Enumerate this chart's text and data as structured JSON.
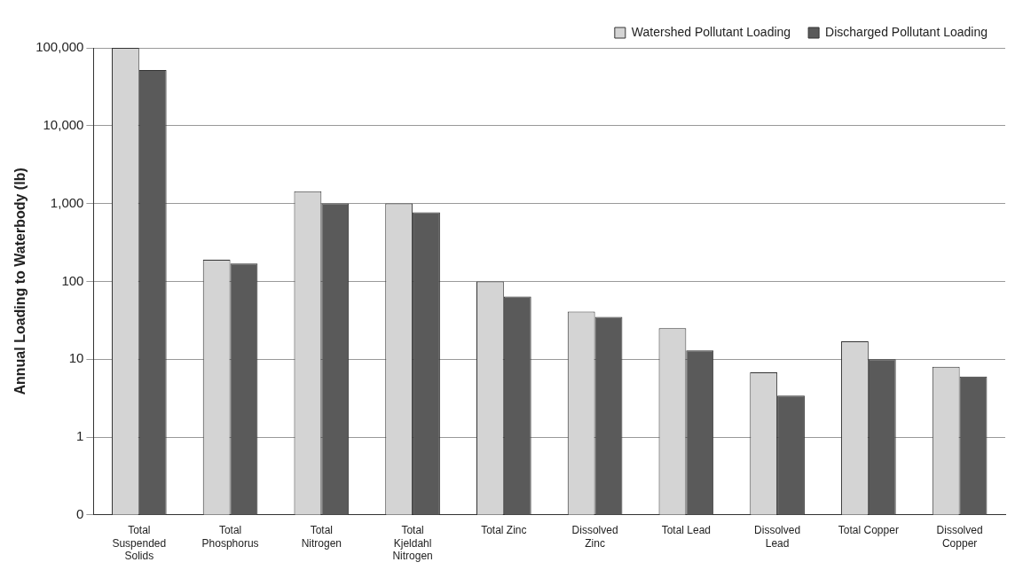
{
  "chart_data": {
    "type": "bar",
    "ylabel": "Annual Loading to Waterbody (lb)",
    "categories": [
      "Total Suspended Solids",
      "Total Phosphorus",
      "Total Nitrogen",
      "Total Kjeldahl Nitrogen",
      "Total Zinc",
      "Dissolved Zinc",
      "Total Lead",
      "Dissolved Lead",
      "Total Copper",
      "Dissolved Copper"
    ],
    "series": [
      {
        "name": "Watershed Pollutant Loading",
        "color": "#d4d4d4",
        "values": [
          100000,
          190,
          1440,
          1000,
          100,
          41,
          25,
          6.8,
          17,
          8
        ]
      },
      {
        "name": "Discharged Pollutant Loading",
        "color": "#5a5a5a",
        "values": [
          52000,
          170,
          1000,
          770,
          64,
          35,
          13,
          3.4,
          10,
          6
        ]
      }
    ],
    "log": "y",
    "ylim": [
      0.1,
      100000
    ],
    "yticks": [
      {
        "value": 0.1,
        "label": "0"
      },
      {
        "value": 1,
        "label": "1"
      },
      {
        "value": 10,
        "label": "10"
      },
      {
        "value": 100,
        "label": "100"
      },
      {
        "value": 1000,
        "label": "1,000"
      },
      {
        "value": 10000,
        "label": "10,000"
      },
      {
        "value": 100000,
        "label": "100,000"
      }
    ],
    "grid": "y",
    "legend": "top right"
  }
}
